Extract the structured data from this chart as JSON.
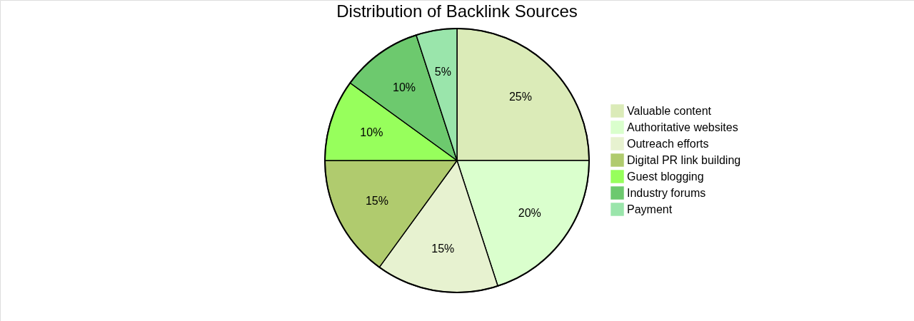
{
  "chart_data": {
    "type": "pie",
    "title": "Distribution of Backlink Sources",
    "categories": [
      "Valuable content",
      "Authoritative websites",
      "Outreach efforts",
      "Digital PR link building",
      "Guest blogging",
      "Industry forums",
      "Payment"
    ],
    "values": [
      25,
      20,
      15,
      15,
      10,
      10,
      5
    ],
    "value_labels": [
      "25%",
      "20%",
      "15%",
      "15%",
      "10%",
      "10%",
      "5%"
    ],
    "colors": [
      "#dbebb8",
      "#daffcd",
      "#e7f2d0",
      "#b0cb6e",
      "#97ff5c",
      "#6dc96e",
      "#9ae5ab"
    ],
    "legend": "right"
  }
}
